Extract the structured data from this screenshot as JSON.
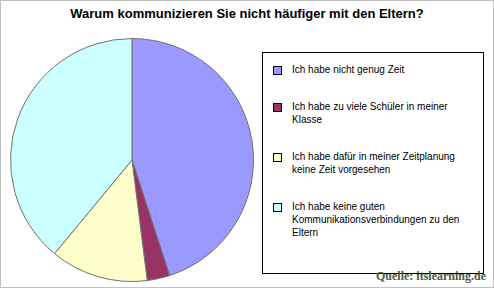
{
  "chart_data": {
    "type": "pie",
    "title": "Warum kommunizieren Sie nicht häufiger mit den Eltern?",
    "categories": [
      "Ich habe nicht genug Zeit",
      "Ich habe zu viele Schüler in meiner Klasse",
      "Ich habe dafür in meiner Zeitplanung keine Zeit vorgesehen",
      "Ich habe keine guten Kommunikationsverbindungen zu den Eltern"
    ],
    "values": [
      45,
      3,
      13,
      39
    ],
    "colors": [
      "#9999ff",
      "#993366",
      "#ffffcc",
      "#ccffff"
    ],
    "legend": "right",
    "annotations": [
      "Quelle: itslearning.de"
    ]
  }
}
